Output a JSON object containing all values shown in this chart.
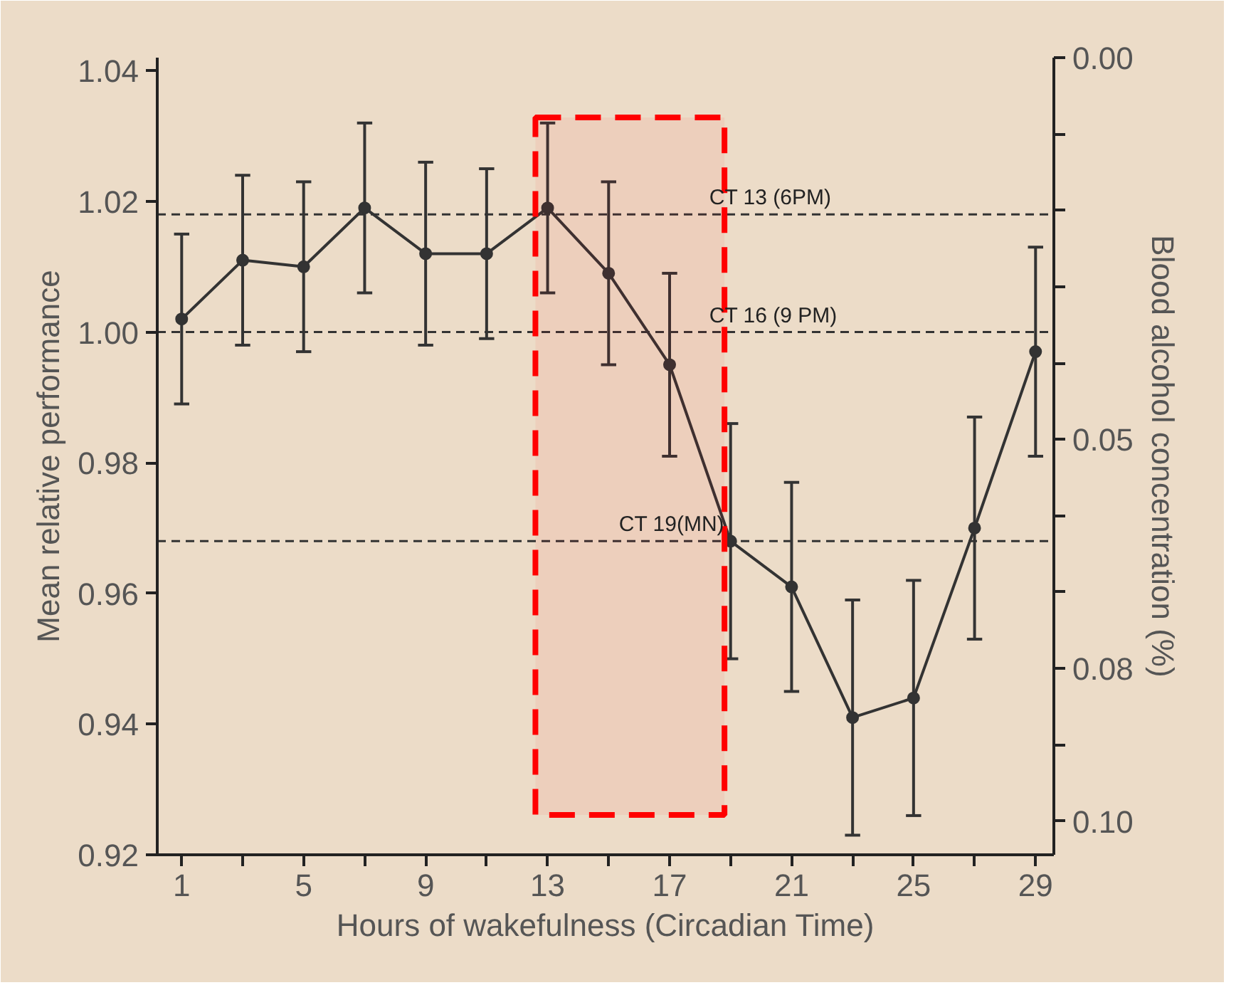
{
  "chart_data": {
    "type": "line",
    "xlabel": "Hours of wakefulness (Circadian Time)",
    "ylabel": "Mean relative performance",
    "y2label": "Blood alcohol concentration (%)",
    "x": [
      1,
      3,
      5,
      7,
      9,
      11,
      13,
      15,
      17,
      19,
      21,
      23,
      25,
      27,
      29
    ],
    "series": [
      {
        "color": "#333333",
        "values": [
          1.002,
          1.011,
          1.01,
          1.019,
          1.012,
          1.012,
          1.019,
          1.009,
          0.995,
          0.968,
          0.961,
          0.941,
          0.944,
          0.97,
          0.997
        ],
        "errors": [
          0.013,
          0.013,
          0.013,
          0.013,
          0.014,
          0.013,
          0.013,
          0.014,
          0.014,
          0.018,
          0.016,
          0.018,
          0.018,
          0.017,
          0.016
        ]
      }
    ],
    "marker": "circle",
    "line_style": "solid",
    "xlim": [
      0.2,
      29.6
    ],
    "xticks": [
      1,
      {
        "value": 3,
        "label": null
      },
      5,
      {
        "value": 7,
        "label": null
      },
      9,
      {
        "value": 11,
        "label": null
      },
      13,
      {
        "value": 15,
        "label": null
      },
      17,
      {
        "value": 19,
        "label": null
      },
      21,
      {
        "value": 23,
        "label": null
      },
      25,
      {
        "value": 27,
        "label": null
      },
      29
    ],
    "ylim": [
      0.92,
      1.042
    ],
    "yticks": [
      0.92,
      0.94,
      0.96,
      0.98,
      {
        "value": 1.0,
        "label": "1.00"
      },
      1.02,
      1.04
    ],
    "y2lim": [
      0.1044,
      0.0
    ],
    "y2ticks": [
      {
        "value": 0.0,
        "label": "0.00"
      },
      {
        "value": 0.01,
        "label": null
      },
      {
        "value": 0.02,
        "label": null
      },
      {
        "value": 0.03,
        "label": null
      },
      {
        "value": 0.04,
        "label": null
      },
      0.05,
      {
        "value": 0.06,
        "label": null
      },
      {
        "value": 0.07,
        "label": null
      },
      0.08,
      {
        "value": 0.09,
        "label": null
      },
      {
        "value": 0.1,
        "label": "0.10"
      }
    ],
    "ref_lines": [
      {
        "axis": "y",
        "value": 1.018,
        "label": "CT 13 (6PM)",
        "line_style": "dashed"
      },
      {
        "axis": "y",
        "value": 1.0,
        "label": "CT 16  (9 PM)",
        "line_style": "dashed"
      },
      {
        "axis": "y",
        "value": 0.968,
        "label": "CT 19(MN)",
        "line_style": "dashed"
      }
    ],
    "bands": [
      {
        "axis": "x",
        "from": 12.6,
        "to": 18.8,
        "color": "#ff0000"
      }
    ],
    "grid": false
  }
}
